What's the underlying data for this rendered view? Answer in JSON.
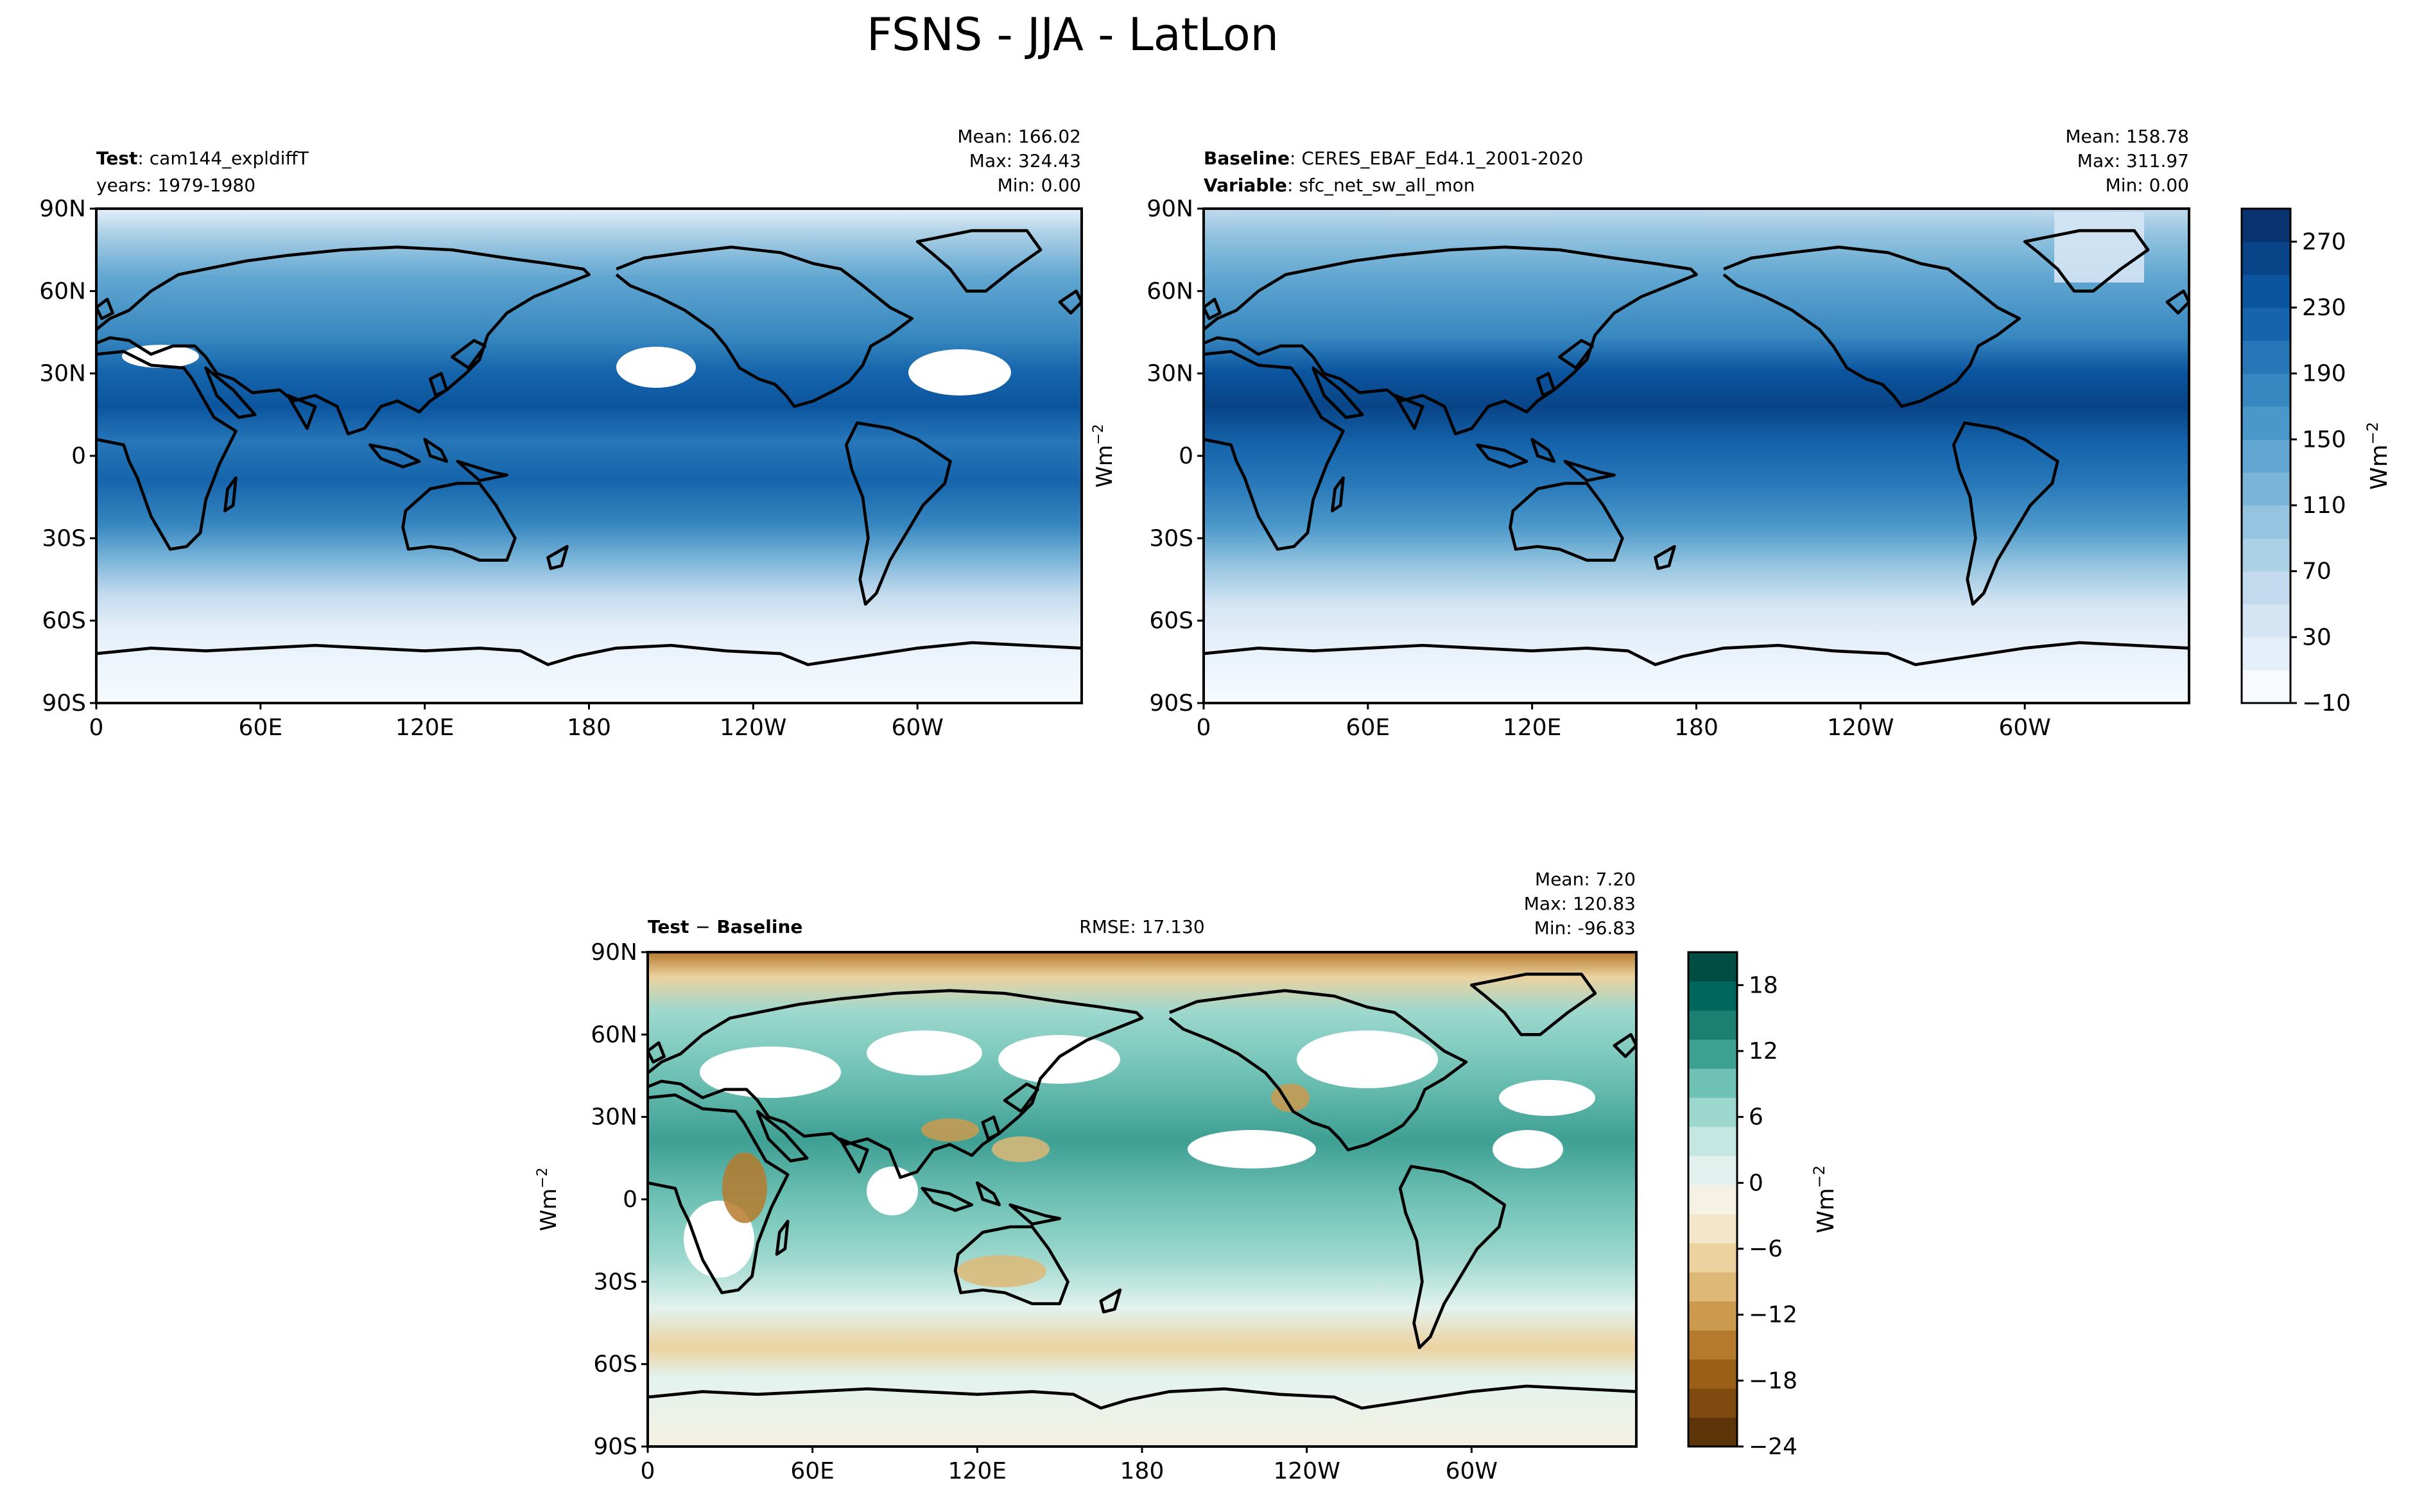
{
  "figure": {
    "title": "FSNS - JJA - LatLon"
  },
  "chart_data": [
    {
      "type": "heatmap",
      "panel": "test",
      "label_bold": "Test",
      "label_value": "cam144_expldiffT",
      "sub_label": "years: 1979-1980",
      "stats": {
        "mean": "Mean: 166.02",
        "max": "Max: 324.43",
        "min": "Min:  0.00"
      },
      "lat_ticks": [
        "90N",
        "60N",
        "30N",
        "0",
        "30S",
        "60S",
        "90S"
      ],
      "lon_ticks": [
        "0",
        "60E",
        "120E",
        "180",
        "120W",
        "60W"
      ],
      "xlim": [
        0,
        360
      ],
      "ylim": [
        -90,
        90
      ]
    },
    {
      "type": "heatmap",
      "panel": "baseline",
      "label_bold": "Baseline",
      "label_value": "CERES_EBAF_Ed4.1_2001-2020",
      "label2_bold": "Variable",
      "label2_value": "sfc_net_sw_all_mon",
      "stats": {
        "mean": "Mean: 158.78",
        "max": "Max: 311.97",
        "min": "Min:  0.00"
      },
      "lat_ticks": [
        "90N",
        "60N",
        "30N",
        "0",
        "30S",
        "60S",
        "90S"
      ],
      "lon_ticks": [
        "0",
        "60E",
        "120E",
        "180",
        "120W",
        "60W"
      ],
      "xlim": [
        0,
        360
      ],
      "ylim": [
        -90,
        90
      ]
    },
    {
      "type": "heatmap",
      "panel": "diff",
      "label_bold": "Test",
      "label_minus": "−",
      "label_bold2": "Baseline",
      "rmse": "RMSE: 17.130",
      "stats": {
        "mean": "Mean:  7.20",
        "max": "Max: 120.83",
        "min": "Min: -96.83"
      },
      "lat_ticks": [
        "90N",
        "60N",
        "30N",
        "0",
        "30S",
        "60S",
        "90S"
      ],
      "lon_ticks": [
        "0",
        "60E",
        "120E",
        "180",
        "120W",
        "60W"
      ],
      "xlim": [
        0,
        360
      ],
      "ylim": [
        -90,
        90
      ]
    }
  ],
  "colorbars": {
    "main": {
      "ticks": [
        "270",
        "230",
        "190",
        "150",
        "110",
        "70",
        "30",
        "−10"
      ],
      "unit_base": "Wm",
      "unit_exp": "−2",
      "range": [
        -10,
        290
      ],
      "colors": [
        "#f7fbff",
        "#e5eff9",
        "#d5e5f4",
        "#c3daee",
        "#acd0e6",
        "#94c4df",
        "#7ab5d9",
        "#60a6d1",
        "#4a97c9",
        "#3787c0",
        "#2676b8",
        "#1665ac",
        "#0b559f",
        "#084487",
        "#08336e"
      ]
    },
    "diff": {
      "ticks": [
        "18",
        "12",
        "6",
        "0",
        "−6",
        "−12",
        "−18",
        "−24"
      ],
      "unit_base": "Wm",
      "unit_exp": "−2",
      "range": [
        -24,
        21
      ],
      "colors": [
        "#5e3508",
        "#7e4a0f",
        "#9b6018",
        "#b67a2d",
        "#cc9a4f",
        "#ddb877",
        "#ebd29f",
        "#f4e6c8",
        "#f5f1e4",
        "#e3f2ee",
        "#c4e7e1",
        "#9dd8ce",
        "#6ec1b4",
        "#3e9f93",
        "#1b7f72",
        "#01665e",
        "#014d43"
      ]
    },
    "side_unit": {
      "base": "Wm",
      "exp": "−2"
    }
  }
}
